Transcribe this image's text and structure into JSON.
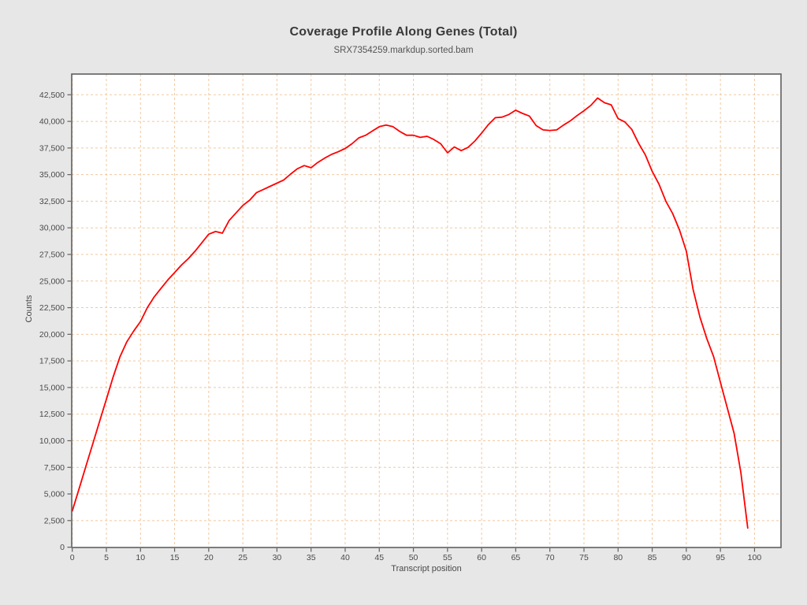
{
  "window": {
    "background_color": "#e7e7e7"
  },
  "chart_data": {
    "type": "line",
    "title": "Coverage Profile Along Genes (Total)",
    "subtitle": "SRX7354259.markdup.sorted.bam",
    "xlabel": "Transcript position",
    "ylabel": "Counts",
    "x_range": [
      0,
      104
    ],
    "y_range": [
      0,
      44400
    ],
    "grid": true,
    "grid_style": "dashed",
    "x_ticks": [
      "0",
      "5",
      "10",
      "15",
      "20",
      "25",
      "30",
      "35",
      "40",
      "45",
      "50",
      "55",
      "60",
      "65",
      "70",
      "75",
      "80",
      "85",
      "90",
      "95",
      "100"
    ],
    "x_tick_values": [
      0,
      5,
      10,
      15,
      20,
      25,
      30,
      35,
      40,
      45,
      50,
      55,
      60,
      65,
      70,
      75,
      80,
      85,
      90,
      95,
      100
    ],
    "y_ticks": [
      "0",
      "2,500",
      "5,000",
      "7,500",
      "10,000",
      "12,500",
      "15,000",
      "17,500",
      "20,000",
      "22,500",
      "25,000",
      "27,500",
      "30,000",
      "32,500",
      "35,000",
      "37,500",
      "40,000",
      "42,500"
    ],
    "y_tick_values": [
      0,
      2500,
      5000,
      7500,
      10000,
      12500,
      15000,
      17500,
      20000,
      22500,
      25000,
      27500,
      30000,
      32500,
      35000,
      37500,
      40000,
      42500
    ],
    "series": [
      {
        "name": "SRX7354259.markdup.sorted.bam",
        "color": "#ff0000",
        "x_start": 0,
        "x_step": 1,
        "values": [
          3400,
          5500,
          7600,
          9700,
          11800,
          13900,
          16000,
          17900,
          19300,
          20300,
          21200,
          22500,
          23500,
          24300,
          25100,
          25800,
          26500,
          27100,
          27800,
          28600,
          29400,
          29650,
          29500,
          30700,
          31400,
          32100,
          32600,
          33300,
          33600,
          33900,
          34200,
          34500,
          35050,
          35550,
          35850,
          35650,
          36150,
          36550,
          36900,
          37150,
          37450,
          37900,
          38450,
          38700,
          39100,
          39500,
          39650,
          39500,
          39050,
          38700,
          38700,
          38500,
          38600,
          38300,
          37900,
          37050,
          37600,
          37250,
          37550,
          38150,
          38900,
          39700,
          40350,
          40400,
          40650,
          41050,
          40750,
          40500,
          39600,
          39200,
          39150,
          39200,
          39650,
          40050,
          40550,
          41000,
          41500,
          42200,
          41750,
          41550,
          40260,
          39950,
          39250,
          37950,
          36850,
          35300,
          34100,
          32500,
          31350,
          29800,
          27800,
          24200,
          21600,
          19600,
          17900,
          15500,
          13100,
          10700,
          7000,
          1800
        ]
      }
    ],
    "colors": {
      "plot_background": "#ffffff",
      "grid": "#f2c89f",
      "frame": "#5f5f5f",
      "line": "#ff0000",
      "tick_text": "#4a4a4a",
      "title_text": "#3a3a3a",
      "subtitle_text": "#555555"
    }
  }
}
